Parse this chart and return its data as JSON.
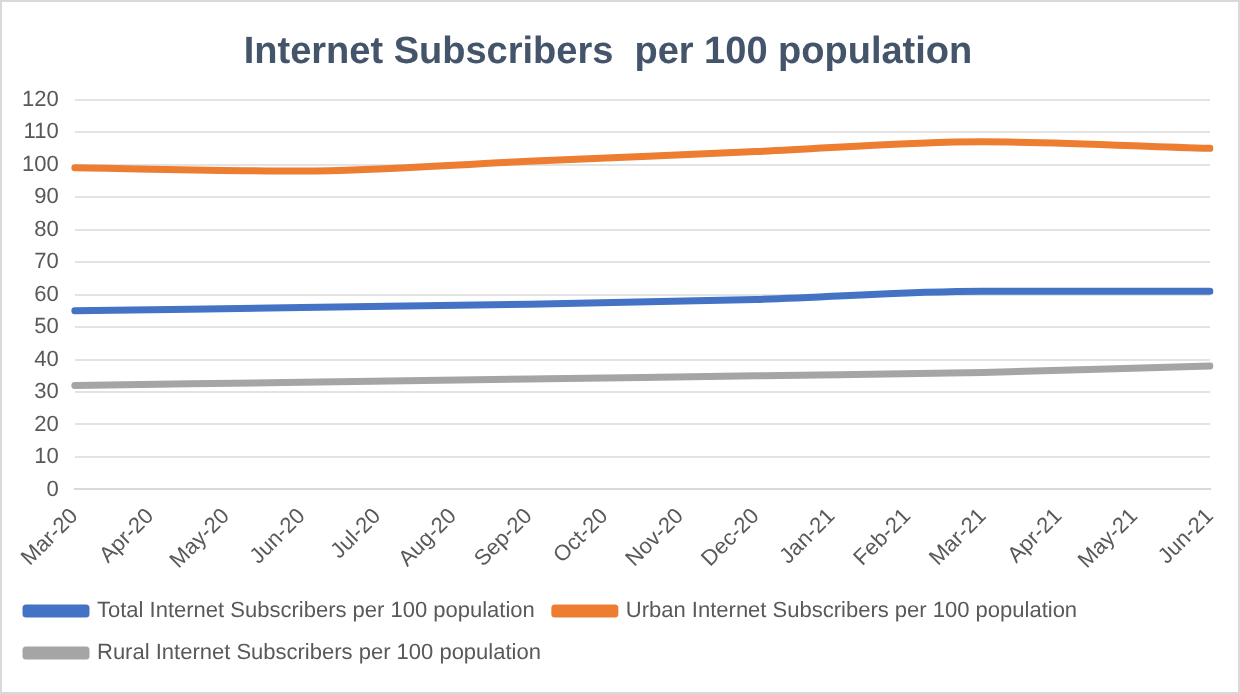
{
  "chart_data": {
    "type": "line",
    "title": "Internet Subscribers  per 100 population",
    "categories": [
      "Mar-20",
      "Apr-20",
      "May-20",
      "Jun-20",
      "Jul-20",
      "Aug-20",
      "Sep-20",
      "Oct-20",
      "Nov-20",
      "Dec-20",
      "Jan-21",
      "Feb-21",
      "Mar-21",
      "Apr-21",
      "May-21",
      "Jun-21"
    ],
    "series": [
      {
        "name": "Total Internet Subscribers per 100 population",
        "color": "#4472c4",
        "values": [
          55,
          null,
          null,
          56,
          null,
          null,
          57,
          null,
          null,
          58.5,
          null,
          null,
          61,
          null,
          null,
          61
        ]
      },
      {
        "name": "Urban Internet Subscribers per 100 population",
        "color": "#ed7d31",
        "values": [
          99,
          null,
          null,
          98,
          null,
          null,
          101,
          null,
          null,
          104,
          null,
          null,
          107,
          null,
          null,
          105
        ]
      },
      {
        "name": "Rural Internet Subscribers per 100 population",
        "color": "#a5a5a5",
        "values": [
          32,
          null,
          null,
          33,
          null,
          null,
          34,
          null,
          null,
          35,
          null,
          null,
          36,
          null,
          null,
          38
        ]
      }
    ],
    "ylim": [
      0,
      120
    ],
    "yticks": [
      0,
      10,
      20,
      30,
      40,
      50,
      60,
      70,
      80,
      90,
      100,
      110,
      120
    ],
    "grid": "y",
    "legend": "bottom",
    "marker": "none",
    "line_style": "solid"
  }
}
